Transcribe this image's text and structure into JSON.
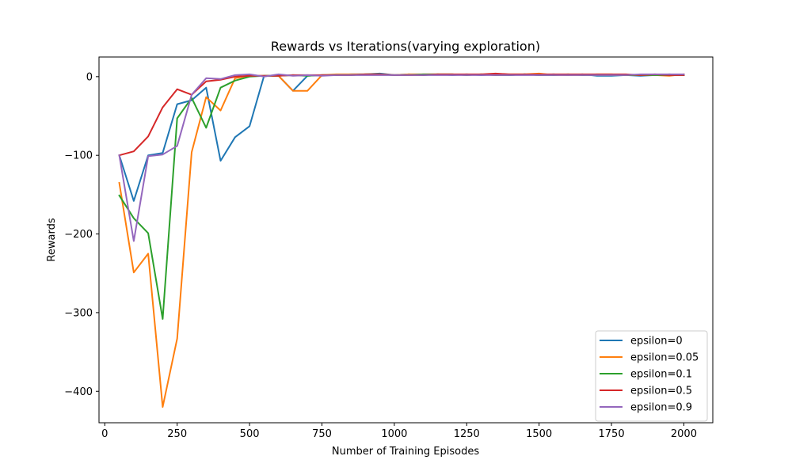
{
  "chart_data": {
    "type": "line",
    "title": "Rewards vs Iterations(varying exploration)",
    "xlabel": "Number of Training Episodes",
    "ylabel": "Rewards",
    "xlim": [
      -20,
      2100
    ],
    "ylim": [
      -440,
      25
    ],
    "x_ticks": [
      {
        "value": 0,
        "label": "0"
      },
      {
        "value": 250,
        "label": "250"
      },
      {
        "value": 500,
        "label": "500"
      },
      {
        "value": 750,
        "label": "750"
      },
      {
        "value": 1000,
        "label": "1000"
      },
      {
        "value": 1250,
        "label": "1250"
      },
      {
        "value": 1500,
        "label": "1500"
      },
      {
        "value": 1750,
        "label": "1750"
      },
      {
        "value": 2000,
        "label": "2000"
      }
    ],
    "y_ticks": [
      {
        "value": 0,
        "label": "0"
      },
      {
        "value": -100,
        "label": "−100"
      },
      {
        "value": -200,
        "label": "−200"
      },
      {
        "value": -300,
        "label": "−300"
      },
      {
        "value": -400,
        "label": "−400"
      }
    ],
    "grid": false,
    "legend_position": "lower-right",
    "x": [
      50,
      100,
      150,
      200,
      250,
      300,
      350,
      400,
      450,
      500,
      550,
      600,
      650,
      700,
      750,
      800,
      850,
      900,
      950,
      1000,
      1050,
      1100,
      1150,
      1200,
      1250,
      1300,
      1350,
      1400,
      1450,
      1500,
      1550,
      1600,
      1650,
      1700,
      1750,
      1800,
      1850,
      1900,
      1950,
      2000
    ],
    "series": [
      {
        "name": "epsilon=0",
        "color": "#1f77b4",
        "values": [
          -100,
          -158,
          -100,
          -97,
          -35,
          -30,
          -14,
          -107,
          -77,
          -63,
          1,
          1,
          -18,
          1,
          2,
          2,
          3,
          3,
          4,
          2,
          3,
          2,
          3,
          2,
          3,
          2,
          3,
          2,
          3,
          2,
          3,
          2,
          3,
          1,
          1,
          2,
          1,
          2,
          3,
          2
        ]
      },
      {
        "name": "epsilon=0.05",
        "color": "#ff7f0e",
        "values": [
          -135,
          -249,
          -225,
          -420,
          -333,
          -96,
          -26,
          -43,
          -2,
          1,
          1,
          1,
          -18,
          -18,
          2,
          3,
          3,
          3,
          3,
          2,
          3,
          3,
          3,
          3,
          2,
          3,
          2,
          3,
          3,
          4,
          2,
          2,
          2,
          3,
          3,
          2,
          2,
          2,
          1,
          3
        ]
      },
      {
        "name": "epsilon=0.1",
        "color": "#2ca02c",
        "values": [
          -151,
          -180,
          -199,
          -308,
          -53,
          -27,
          -65,
          -14,
          -5,
          0,
          1,
          1,
          2,
          1,
          2,
          2,
          2,
          3,
          3,
          2,
          2,
          3,
          3,
          3,
          2,
          3,
          2,
          2,
          3,
          2,
          2,
          3,
          2,
          2,
          2,
          2,
          2,
          2,
          2,
          2
        ]
      },
      {
        "name": "epsilon=0.5",
        "color": "#d62728",
        "values": [
          -100,
          -95,
          -76,
          -39,
          -16,
          -23,
          -6,
          -4,
          0,
          1,
          1,
          1,
          2,
          2,
          2,
          2,
          2,
          3,
          3,
          2,
          2,
          2,
          3,
          3,
          3,
          3,
          4,
          3,
          3,
          3,
          3,
          3,
          3,
          3,
          3,
          3,
          2,
          3,
          2,
          2
        ]
      },
      {
        "name": "epsilon=0.9",
        "color": "#9467bd",
        "values": [
          -100,
          -209,
          -101,
          -99,
          -88,
          -23,
          -2,
          -3,
          2,
          3,
          0,
          3,
          1,
          2,
          1,
          2,
          2,
          2,
          2,
          2,
          2,
          2,
          2,
          2,
          2,
          2,
          2,
          2,
          2,
          2,
          2,
          2,
          2,
          2,
          2,
          2,
          3,
          3,
          3,
          3
        ]
      }
    ]
  }
}
